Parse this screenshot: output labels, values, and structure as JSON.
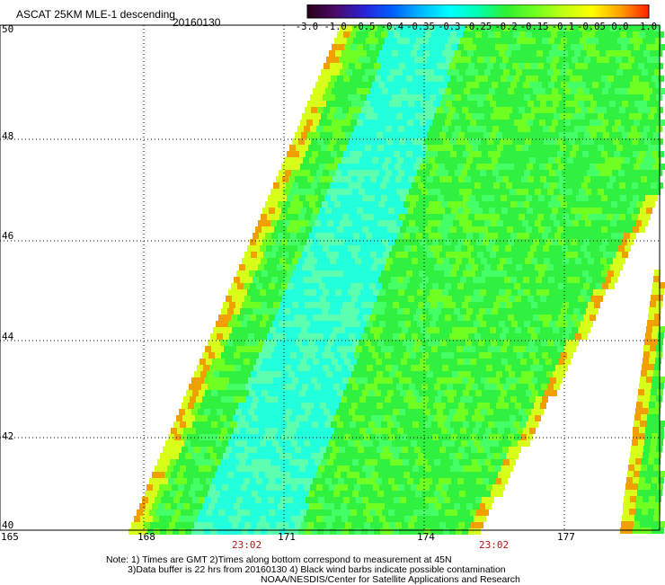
{
  "header": {
    "title": "ASCAT 25KM MLE-1 descending",
    "date": "20160130"
  },
  "colorbar": {
    "tick_labels": [
      "-3.0",
      "-1.0",
      "-0.5",
      "-0.4",
      "-0.35",
      "-0.3",
      "-0.25",
      "-0.2",
      "-0.15",
      "-0.1",
      "-0.05",
      "0.0",
      "1.0"
    ],
    "colors": [
      "#2a0018",
      "#4a0a6a",
      "#2a22d8",
      "#0060ff",
      "#00b8ff",
      "#00ffff",
      "#00ffb0",
      "#30f030",
      "#70ff20",
      "#c0ff10",
      "#ffff00",
      "#ffa000",
      "#ff2000"
    ]
  },
  "map": {
    "lat_labels": [
      "50",
      "48",
      "46",
      "44",
      "42",
      "40"
    ],
    "lon_labels": [
      "165",
      "168",
      "171",
      "174",
      "177"
    ],
    "pass_times": [
      "23:02",
      "23:02"
    ],
    "swath_colors": {
      "core": "#22ffdc",
      "main": "#30f040",
      "warm": "#6fff20",
      "edge_yellow": "#d8ff1a",
      "edge_orange": "#f0a000"
    }
  },
  "notes": [
    "Note: 1) Times are GMT 2)Times along bottom correspond to measurement at 45N",
    "3)Data buffer is 22 hrs from 20160130 4) Black wind barbs indicate possible contamination",
    "NOAA/NESDIS/Center for Satellite Applications and Research"
  ]
}
